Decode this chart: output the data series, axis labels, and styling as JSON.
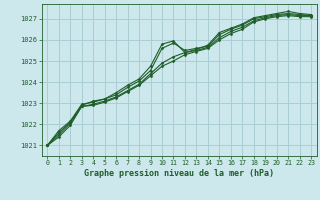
{
  "background_color": "#cce8ec",
  "grid_color": "#aacdd4",
  "line_color": "#1e5e28",
  "title": "Graphe pression niveau de la mer (hPa)",
  "xlim": [
    -0.5,
    23.5
  ],
  "ylim": [
    1020.5,
    1027.7
  ],
  "yticks": [
    1021,
    1022,
    1023,
    1024,
    1025,
    1026,
    1027
  ],
  "xticks": [
    0,
    1,
    2,
    3,
    4,
    5,
    6,
    7,
    8,
    9,
    10,
    11,
    12,
    13,
    14,
    15,
    16,
    17,
    18,
    19,
    20,
    21,
    22,
    23
  ],
  "series": [
    [
      1021.0,
      1021.7,
      1022.15,
      1022.95,
      1023.05,
      1023.2,
      1023.5,
      1023.85,
      1024.15,
      1024.75,
      1025.8,
      1025.95,
      1025.4,
      1025.55,
      1025.75,
      1026.35,
      1026.55,
      1026.75,
      1027.05,
      1027.15,
      1027.25,
      1027.35,
      1027.25,
      1027.2
    ],
    [
      1021.0,
      1021.6,
      1022.1,
      1022.9,
      1023.1,
      1023.2,
      1023.4,
      1023.75,
      1024.05,
      1024.55,
      1025.6,
      1025.85,
      1025.5,
      1025.6,
      1025.7,
      1026.25,
      1026.5,
      1026.7,
      1027.0,
      1027.1,
      1027.2,
      1027.25,
      1027.2,
      1027.15
    ],
    [
      1021.0,
      1021.5,
      1022.05,
      1022.85,
      1022.95,
      1023.1,
      1023.3,
      1023.6,
      1023.9,
      1024.4,
      1024.9,
      1025.2,
      1025.4,
      1025.5,
      1025.65,
      1026.1,
      1026.4,
      1026.6,
      1026.9,
      1027.05,
      1027.15,
      1027.2,
      1027.15,
      1027.15
    ],
    [
      1021.0,
      1021.4,
      1021.95,
      1022.85,
      1022.9,
      1023.05,
      1023.25,
      1023.55,
      1023.85,
      1024.3,
      1024.75,
      1025.0,
      1025.3,
      1025.45,
      1025.6,
      1026.0,
      1026.3,
      1026.5,
      1026.85,
      1027.0,
      1027.1,
      1027.15,
      1027.1,
      1027.1
    ]
  ]
}
